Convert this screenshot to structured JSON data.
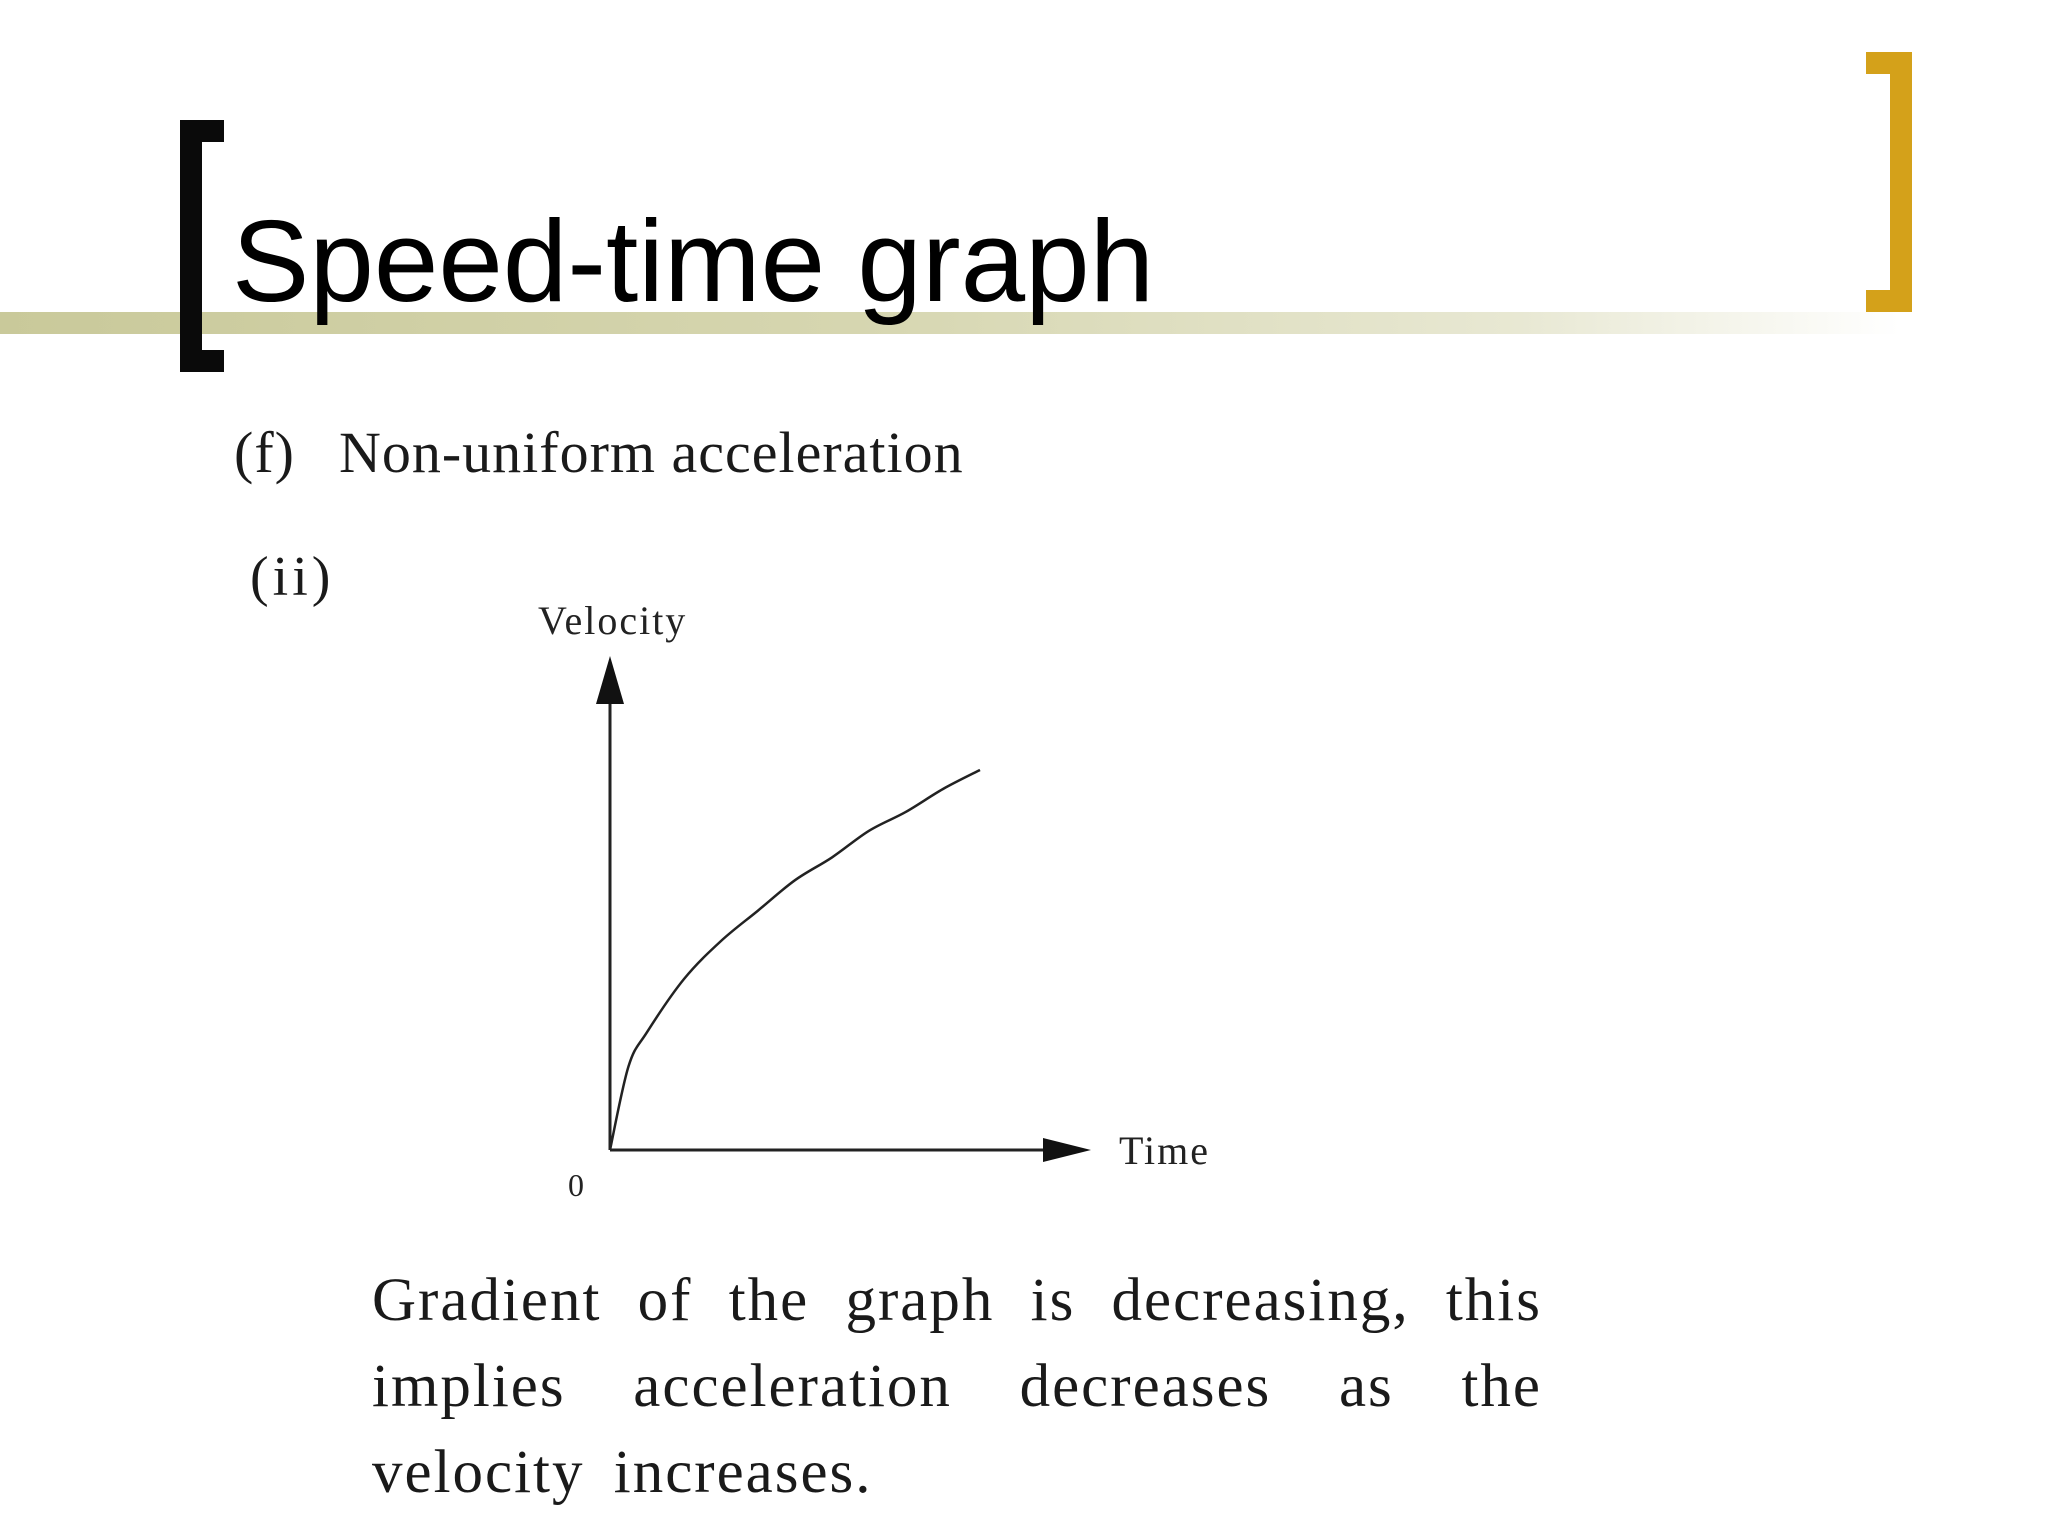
{
  "slide": {
    "title": "Speed-time graph",
    "accent_colors": {
      "left_bracket": "#0a0a0a",
      "right_bracket": "#d4a11a",
      "title_rule": "#c9c99a"
    }
  },
  "section": {
    "label": "(f)",
    "heading": "Non-uniform acceleration"
  },
  "subsection": {
    "label": "(ii)"
  },
  "chart_data": {
    "type": "line",
    "title": "",
    "xlabel": "Time",
    "ylabel": "Velocity",
    "origin_label": "0",
    "grid": false,
    "axis_ticks": false,
    "description_of_curve": "",
    "series": [
      {
        "x": [
          0,
          0.05,
          0.1,
          0.2,
          0.3,
          0.4,
          0.5,
          0.6,
          0.7,
          0.8,
          0.9,
          1.0
        ],
        "y": [
          0,
          0.22,
          0.31,
          0.45,
          0.55,
          0.63,
          0.71,
          0.77,
          0.84,
          0.89,
          0.95,
          1.0
        ]
      }
    ],
    "xlim": [
      0,
      1.3
    ],
    "ylim": [
      0,
      1.3
    ]
  },
  "caption": {
    "text": "Gradient of the graph is decreasing, this implies acceleration decreases as the velocity increases."
  }
}
